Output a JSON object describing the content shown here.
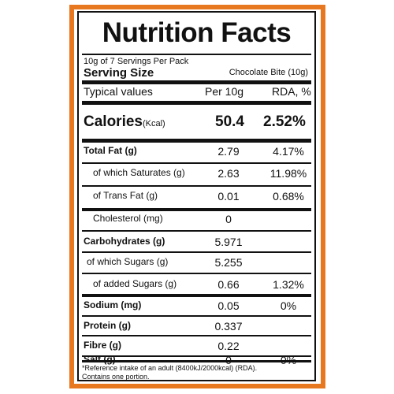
{
  "colors": {
    "border_accent": "#e8781f",
    "text": "#111111"
  },
  "label": {
    "title": "Nutrition Facts",
    "servings_per_pack": "10g of 7 Servings Per Pack",
    "serving_size_label": "Serving Size",
    "serving_size_value": "Chocolate Bite (10g)",
    "header": {
      "name": "Typical values",
      "per": "Per 10g",
      "rda": "RDA, %"
    },
    "calories": {
      "label": "Calories",
      "unit": "(Kcal)",
      "per": "50.4",
      "rda": "2.52%"
    },
    "rows": [
      {
        "name": "Total Fat (g)",
        "per": "2.79",
        "rda": "4.17%"
      },
      {
        "name": "of which Saturates (g)",
        "per": "2.63",
        "rda": "11.98%"
      },
      {
        "name": "of Trans Fat (g)",
        "per": "0.01",
        "rda": "0.68%"
      },
      {
        "name": "Cholesterol (mg)",
        "per": "0",
        "rda": ""
      },
      {
        "name": "Carbohydrates (g)",
        "per": "5.971",
        "rda": ""
      },
      {
        "name": "of which Sugars (g)",
        "per": "5.255",
        "rda": ""
      },
      {
        "name": "of added Sugars (g)",
        "per": "0.66",
        "rda": "1.32%"
      },
      {
        "name": "Sodium (mg)",
        "per": "0.05",
        "rda": "0%"
      },
      {
        "name": "Protein (g)",
        "per": "0.337",
        "rda": ""
      },
      {
        "name": "Fibre (g)",
        "per": "0.22",
        "rda": ""
      },
      {
        "name": "Salt (g)",
        "per": "0",
        "rda": "0%"
      }
    ],
    "footnote_line1": "*Reference intake of an adult (8400kJ/2000kcal) (RDA).",
    "footnote_line2": "Contains one portion."
  }
}
